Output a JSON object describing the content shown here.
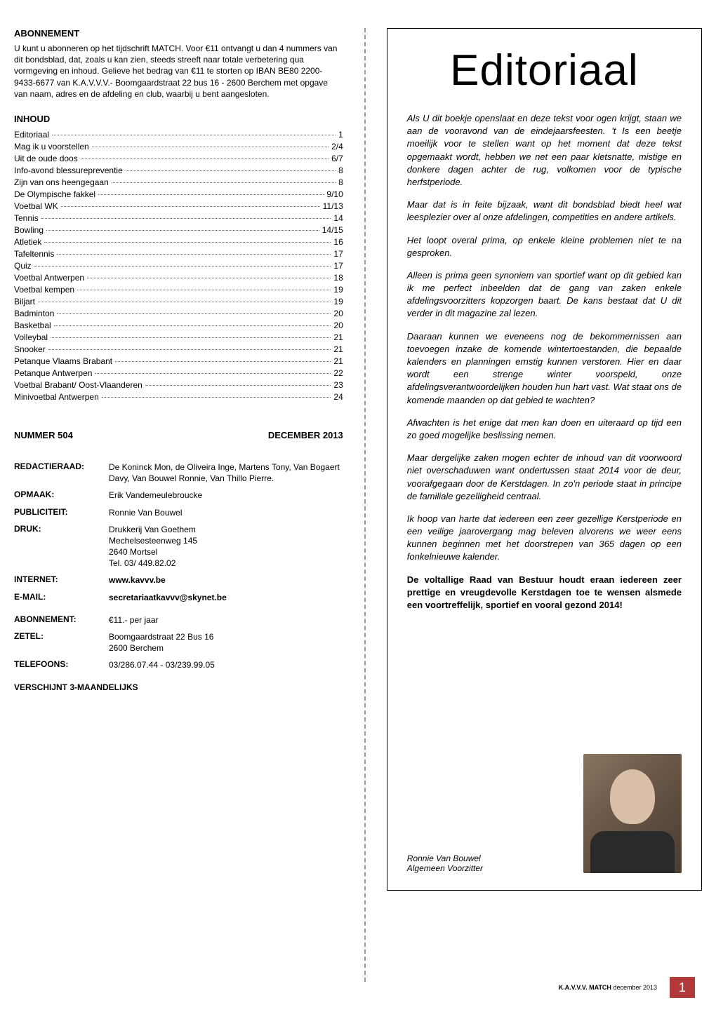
{
  "abonnement": {
    "heading": "ABONNEMENT",
    "text": "U kunt u abonneren op het tijdschrift MATCH. Voor €11 ontvangt u dan 4 nummers van dit bondsblad, dat, zoals u kan zien, steeds streeft naar totale verbetering qua vormgeving en inhoud. Gelieve het bedrag van €11 te storten op IBAN BE80 2200-9433-6677 van K.A.V.V.V.- Boomgaardstraat 22 bus 16 - 2600 Berchem met opgave van naam, adres en de afdeling en club, waarbij u bent aangesloten."
  },
  "inhoud": {
    "heading": "INHOUD",
    "items": [
      {
        "label": "Editoriaal",
        "page": "1"
      },
      {
        "label": "Mag ik u voorstellen",
        "page": "2/4"
      },
      {
        "label": "Uit de oude doos",
        "page": "6/7"
      },
      {
        "label": "Info-avond blessurepreventie",
        "page": "8"
      },
      {
        "label": "Zijn van ons heengegaan",
        "page": "8"
      },
      {
        "label": "De Olympische fakkel",
        "page": "9/10"
      },
      {
        "label": "Voetbal WK",
        "page": "11/13"
      },
      {
        "label": "Tennis",
        "page": "14"
      },
      {
        "label": "Bowling",
        "page": "14/15"
      },
      {
        "label": "Atletiek",
        "page": "16"
      },
      {
        "label": "Tafeltennis",
        "page": "17"
      },
      {
        "label": "Quiz",
        "page": "17"
      },
      {
        "label": "Voetbal Antwerpen",
        "page": "18"
      },
      {
        "label": "Voetbal kempen",
        "page": "19"
      },
      {
        "label": "Biljart",
        "page": "19"
      },
      {
        "label": "Badminton",
        "page": "20"
      },
      {
        "label": "Basketbal",
        "page": "20"
      },
      {
        "label": "Volleybal",
        "page": "21"
      },
      {
        "label": "Snooker",
        "page": "21"
      },
      {
        "label": "Petanque Vlaams Brabant",
        "page": "21"
      },
      {
        "label": "Petanque Antwerpen",
        "page": "22"
      },
      {
        "label": "Voetbal Brabant/ Oost-Vlaanderen",
        "page": "23"
      },
      {
        "label": "Minivoetbal Antwerpen",
        "page": "24"
      }
    ]
  },
  "issue": {
    "nummer_label": "NUMMER 504",
    "date_label": "DECEMBER 2013"
  },
  "credits": [
    {
      "label": "REDACTIERAAD:",
      "value": "De Koninck Mon, de Oliveira Inge, Martens Tony,  Van Bogaert Davy, Van Bouwel Ronnie, Van Thillo Pierre."
    },
    {
      "label": "OPMAAK:",
      "value": "Erik Vandemeulebroucke"
    },
    {
      "label": "PUBLICITEIT:",
      "value": "Ronnie Van Bouwel"
    },
    {
      "label": "DRUK:",
      "value": "Drukkerij Van Goethem\nMechelsesteenweg 145\n2640 Mortsel\nTel. 03/ 449.82.02"
    },
    {
      "label": "INTERNET:",
      "value": "www.kavvv.be",
      "bold": true
    },
    {
      "label": "E-MAIL:",
      "value": "secretariaatkavvv@skynet.be",
      "bold": true
    },
    {
      "label": "ABONNEMENT:",
      "value": "€11.- per jaar"
    },
    {
      "label": "ZETEL:",
      "value": "Boomgaardstraat 22 Bus 16\n2600 Berchem"
    },
    {
      "label": "TELEFOONS:",
      "value": "03/286.07.44 - 03/239.99.05"
    }
  ],
  "verschijnt": "VERSCHIJNT 3-MAANDELIJKS",
  "editorial": {
    "title": "Editoriaal",
    "paragraphs": [
      "Als U dit boekje openslaat en deze tekst voor ogen krijgt, staan we aan de vooravond van de eindejaarsfeesten. 't Is een beetje moeilijk voor te stellen want op het moment dat deze tekst opgemaakt wordt, hebben we net een paar kletsnatte, mistige en donkere dagen achter de rug, volkomen voor de typische herfstperiode.",
      "Maar dat is in feite bijzaak, want dit bondsblad biedt heel wat leesplezier over al onze afdelingen, competities en andere artikels.",
      "Het loopt overal prima, op enkele kleine problemen niet te na gesproken.",
      "Alleen is prima geen synoniem van sportief want op dit gebied kan ik me perfect inbeelden dat de gang van zaken enkele afdelingsvoorzitters kopzorgen baart. De kans bestaat dat U dit verder in dit magazine zal lezen.",
      "Daaraan kunnen we eveneens nog de bekommernissen aan toevoegen inzake de komende wintertoestanden, die bepaalde kalenders en planningen ernstig kunnen verstoren. Hier en daar wordt een strenge winter voorspeld, onze afdelingsverantwoordelijken houden hun hart vast. Wat staat ons de komende maanden op dat gebied te wachten?",
      "Afwachten is het enige dat men kan doen en uiteraard op tijd een zo goed mogelijke beslissing nemen.",
      "Maar dergelijke zaken mogen echter de inhoud van dit voorwoord niet overschaduwen want ondertussen staat 2014 voor de deur, voorafgegaan door de Kerstdagen. In zo'n periode staat in principe de familiale gezelligheid centraal.",
      "Ik hoop van harte dat iedereen een zeer gezellige Kerstperiode en een veilige jaarovergang mag beleven alvorens we  weer eens kunnen beginnen met het doorstrepen van 365 dagen op een fonkelnieuwe kalender."
    ],
    "bold_para": "De voltallige Raad van Bestuur houdt eraan iedereen zeer prettige en vreugdevolle Kerstdagen toe te wensen alsmede een voortreffelijk, sportief en vooral gezond 2014!",
    "signer_name": "Ronnie Van Bouwel",
    "signer_role": "Algemeen Voorzitter"
  },
  "footer": {
    "brand": "K.A.V.V.V. MATCH",
    "issue": "december 2013",
    "pagenum": "1"
  },
  "colors": {
    "accent": "#b33a3a",
    "text": "#000000",
    "dashed": "#999999"
  }
}
